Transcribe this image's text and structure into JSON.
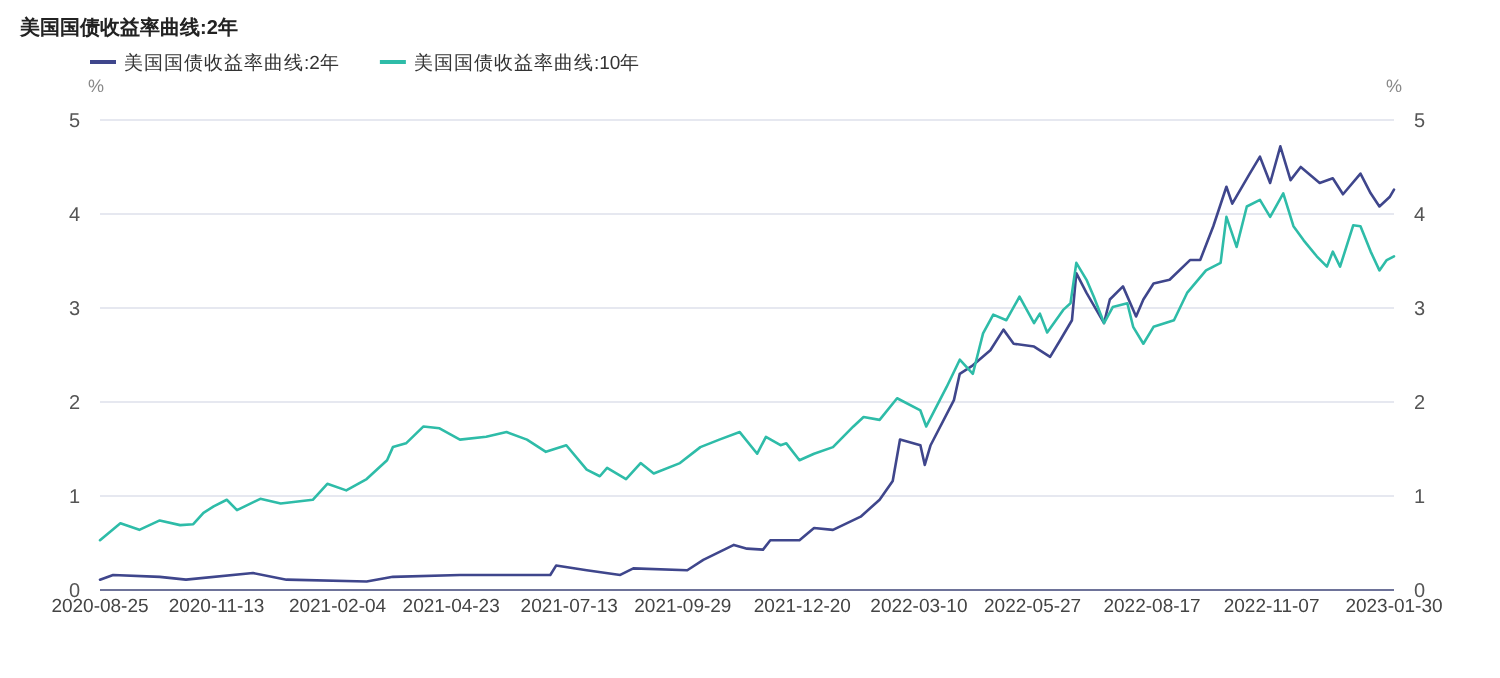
{
  "chart_data": {
    "type": "line",
    "title": "美国国债收益率曲线:2年",
    "ylabel": "%",
    "y2label": "%",
    "ylim": [
      0,
      5
    ],
    "yticks": [
      0,
      1,
      2,
      3,
      4,
      5
    ],
    "y2lim": [
      0,
      5
    ],
    "y2ticks": [
      0,
      1,
      2,
      3,
      4,
      5
    ],
    "xlim": [
      "2020-08-25",
      "2023-01-30"
    ],
    "xticks": [
      "2020-08-25",
      "2020-11-13",
      "2021-02-04",
      "2021-04-23",
      "2021-07-13",
      "2021-09-29",
      "2021-12-20",
      "2022-03-10",
      "2022-05-27",
      "2022-08-17",
      "2022-11-07",
      "2023-01-30"
    ],
    "grid": "y",
    "legend": "top left",
    "line_style": "solid",
    "series": [
      {
        "name": "美国国债收益率曲线:2年",
        "color": "#3f468c",
        "x": [
          "2020-08-25",
          "2020-09-03",
          "2020-10-05",
          "2020-10-23",
          "2020-12-08",
          "2020-12-31",
          "2021-02-24",
          "2021-03-14",
          "2021-04-29",
          "2021-06-30",
          "2021-07-04",
          "2021-07-25",
          "2021-08-17",
          "2021-08-26",
          "2021-10-02",
          "2021-10-13",
          "2021-11-03",
          "2021-11-12",
          "2021-11-23",
          "2021-11-28",
          "2021-12-05",
          "2021-12-18",
          "2021-12-28",
          "2022-01-10",
          "2022-01-29",
          "2022-02-11",
          "2022-02-20",
          "2022-02-25",
          "2022-03-11",
          "2022-03-14",
          "2022-03-18",
          "2022-04-03",
          "2022-04-07",
          "2022-04-16",
          "2022-04-28",
          "2022-05-07",
          "2022-05-14",
          "2022-05-28",
          "2022-06-08",
          "2022-06-15",
          "2022-06-23",
          "2022-06-26",
          "2022-07-03",
          "2022-07-15",
          "2022-07-19",
          "2022-07-28",
          "2022-08-06",
          "2022-08-11",
          "2022-08-18",
          "2022-08-29",
          "2022-09-12",
          "2022-09-19",
          "2022-09-28",
          "2022-10-07",
          "2022-10-11",
          "2022-10-23",
          "2022-10-30",
          "2022-11-06",
          "2022-11-13",
          "2022-11-20",
          "2022-11-27",
          "2022-12-10",
          "2022-12-19",
          "2022-12-26",
          "2023-01-07",
          "2023-01-14",
          "2023-01-20",
          "2023-01-27",
          "2023-01-30"
        ],
        "values": [
          0.11,
          0.16,
          0.14,
          0.11,
          0.18,
          0.11,
          0.09,
          0.14,
          0.16,
          0.16,
          0.26,
          0.21,
          0.16,
          0.23,
          0.21,
          0.32,
          0.48,
          0.44,
          0.43,
          0.53,
          0.53,
          0.53,
          0.66,
          0.64,
          0.78,
          0.96,
          1.16,
          1.6,
          1.54,
          1.33,
          1.54,
          2.02,
          2.3,
          2.39,
          2.55,
          2.77,
          2.62,
          2.59,
          2.48,
          2.66,
          2.87,
          3.37,
          3.16,
          2.84,
          3.09,
          3.23,
          2.91,
          3.09,
          3.26,
          3.3,
          3.51,
          3.51,
          3.87,
          4.29,
          4.11,
          4.43,
          4.61,
          4.33,
          4.72,
          4.36,
          4.5,
          4.33,
          4.38,
          4.21,
          4.43,
          4.22,
          4.08,
          4.18,
          4.26
        ]
      },
      {
        "name": "美国国债收益率曲线:10年",
        "color": "#2ebca8",
        "x": [
          "2020-08-25",
          "2020-09-08",
          "2020-09-21",
          "2020-10-05",
          "2020-10-19",
          "2020-10-28",
          "2020-11-04",
          "2020-11-11",
          "2020-11-20",
          "2020-11-27",
          "2020-12-13",
          "2020-12-27",
          "2021-01-18",
          "2021-01-28",
          "2021-02-10",
          "2021-02-24",
          "2021-03-10",
          "2021-03-14",
          "2021-03-23",
          "2021-04-04",
          "2021-04-15",
          "2021-04-29",
          "2021-05-17",
          "2021-05-31",
          "2021-06-14",
          "2021-06-27",
          "2021-07-11",
          "2021-07-25",
          "2021-08-03",
          "2021-08-08",
          "2021-08-21",
          "2021-08-31",
          "2021-09-09",
          "2021-09-27",
          "2021-10-11",
          "2021-10-24",
          "2021-11-07",
          "2021-11-19",
          "2021-11-25",
          "2021-12-05",
          "2021-12-09",
          "2021-12-18",
          "2021-12-28",
          "2022-01-10",
          "2022-01-24",
          "2022-01-31",
          "2022-02-11",
          "2022-02-23",
          "2022-03-11",
          "2022-03-15",
          "2022-03-29",
          "2022-04-07",
          "2022-04-16",
          "2022-04-23",
          "2022-04-30",
          "2022-05-09",
          "2022-05-18",
          "2022-05-28",
          "2022-06-01",
          "2022-06-06",
          "2022-06-17",
          "2022-06-22",
          "2022-06-26",
          "2022-07-03",
          "2022-07-08",
          "2022-07-15",
          "2022-07-21",
          "2022-07-31",
          "2022-08-04",
          "2022-08-11",
          "2022-08-18",
          "2022-09-01",
          "2022-09-10",
          "2022-09-23",
          "2022-10-03",
          "2022-10-07",
          "2022-10-14",
          "2022-10-21",
          "2022-10-30",
          "2022-11-06",
          "2022-11-15",
          "2022-11-22",
          "2022-11-29",
          "2022-12-08",
          "2022-12-15",
          "2022-12-19",
          "2022-12-24",
          "2023-01-02",
          "2023-01-07",
          "2023-01-14",
          "2023-01-20",
          "2023-01-25",
          "2023-01-30"
        ],
        "values": [
          0.53,
          0.71,
          0.64,
          0.74,
          0.69,
          0.7,
          0.82,
          0.89,
          0.96,
          0.85,
          0.97,
          0.92,
          0.96,
          1.13,
          1.06,
          1.18,
          1.38,
          1.52,
          1.56,
          1.74,
          1.72,
          1.6,
          1.63,
          1.68,
          1.6,
          1.47,
          1.54,
          1.28,
          1.21,
          1.3,
          1.18,
          1.35,
          1.24,
          1.35,
          1.52,
          1.6,
          1.68,
          1.45,
          1.63,
          1.54,
          1.56,
          1.38,
          1.45,
          1.52,
          1.74,
          1.84,
          1.81,
          2.04,
          1.91,
          1.74,
          2.16,
          2.45,
          2.3,
          2.73,
          2.93,
          2.87,
          3.12,
          2.84,
          2.94,
          2.74,
          2.98,
          3.05,
          3.48,
          3.3,
          3.12,
          2.84,
          3.01,
          3.05,
          2.8,
          2.62,
          2.8,
          2.87,
          3.16,
          3.4,
          3.48,
          3.97,
          3.65,
          4.08,
          4.15,
          3.97,
          4.22,
          3.87,
          3.72,
          3.55,
          3.44,
          3.6,
          3.44,
          3.88,
          3.87,
          3.6,
          3.4,
          3.51,
          3.55
        ]
      }
    ]
  }
}
